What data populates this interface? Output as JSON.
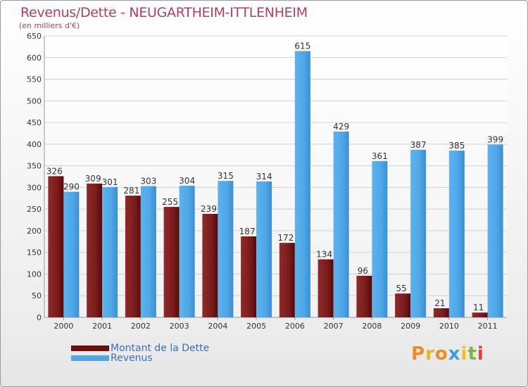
{
  "title": "Revenus/Dette - NEUGARTHEIM-ITTLENHEIM",
  "subtitle": "(en milliers d'€)",
  "logo_text": "Proxiti",
  "colors": {
    "debt": "#7a1c1c",
    "revenue": "#4ea6e6",
    "axis_text": "#333333",
    "title": "#b04060",
    "legend_text": "#3a6ec8"
  },
  "legend": [
    {
      "label": "Montant de la Dette",
      "color": "#6a0e0e"
    },
    {
      "label": "Revenus",
      "color": "#4ea6e6"
    }
  ],
  "chart_data": {
    "type": "bar",
    "title": "Revenus/Dette - NEUGARTHEIM-ITTLENHEIM",
    "subtitle": "(en milliers d'€)",
    "categories": [
      "2000",
      "2001",
      "2002",
      "2003",
      "2004",
      "2005",
      "2006",
      "2007",
      "2008",
      "2009",
      "2010",
      "2011"
    ],
    "series": [
      {
        "name": "Montant de la Dette",
        "values": [
          326,
          309,
          281,
          255,
          239,
          187,
          172,
          134,
          96,
          55,
          21,
          11
        ]
      },
      {
        "name": "Revenus",
        "values": [
          290,
          301,
          303,
          304,
          315,
          314,
          615,
          429,
          361,
          387,
          385,
          399
        ]
      }
    ],
    "ylim": [
      0,
      650
    ],
    "yticks": [
      0,
      50,
      100,
      150,
      200,
      250,
      300,
      350,
      400,
      450,
      500,
      550,
      600,
      650
    ],
    "grid": true,
    "legend_position": "bottom-left"
  }
}
